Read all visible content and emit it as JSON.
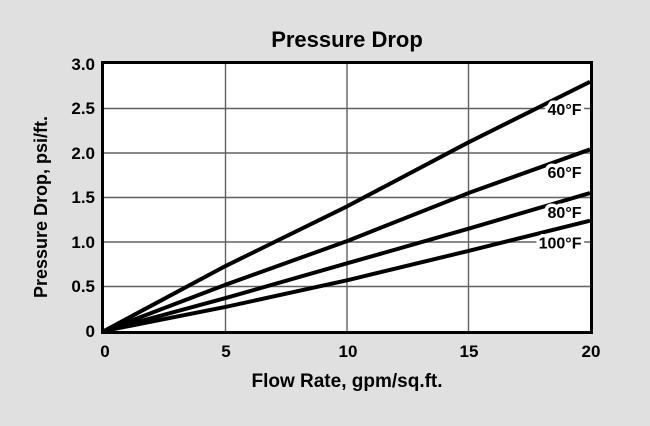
{
  "chart_data": {
    "type": "line",
    "title": "Pressure Drop",
    "xlabel": "Flow Rate, gpm/sq.ft.",
    "ylabel": "Pressure Drop, psi/ft.",
    "xlim": [
      0,
      20
    ],
    "ylim": [
      0,
      3.0
    ],
    "grid": {
      "on": true,
      "x_values": [
        5,
        10,
        15
      ],
      "y_values": [
        0.5,
        1.0,
        1.5,
        2.0,
        2.5
      ]
    },
    "xtick_labels": [
      "0",
      "5",
      "10",
      "15",
      "20"
    ],
    "ytick_labels_top_down": [
      "3.0",
      "2.5",
      "2.0",
      "1.5",
      "1.0",
      "0.5",
      "0"
    ],
    "legend_position": "inline-right-of-lines",
    "x": [
      0,
      5,
      10,
      15,
      20
    ],
    "series": [
      {
        "name": "40°F",
        "values": [
          0,
          0.73,
          1.4,
          2.12,
          2.8
        ],
        "label_anchor": {
          "x": 19.65,
          "y": 2.48
        }
      },
      {
        "name": "60°F",
        "values": [
          0,
          0.52,
          1.01,
          1.55,
          2.04
        ],
        "label_anchor": {
          "x": 19.65,
          "y": 1.77
        }
      },
      {
        "name": "80°F",
        "values": [
          0,
          0.37,
          0.76,
          1.15,
          1.55
        ],
        "label_anchor": {
          "x": 19.65,
          "y": 1.32
        }
      },
      {
        "name": "100°F",
        "values": [
          0,
          0.27,
          0.57,
          0.9,
          1.24
        ],
        "label_anchor": {
          "x": 19.65,
          "y": 0.98
        }
      }
    ],
    "colors": {
      "line": "#000000",
      "grid": "#606060",
      "frame": "#000000",
      "plot_bg": "#ffffff",
      "page_bg": "#e0e0e0",
      "text": "#000000"
    }
  }
}
